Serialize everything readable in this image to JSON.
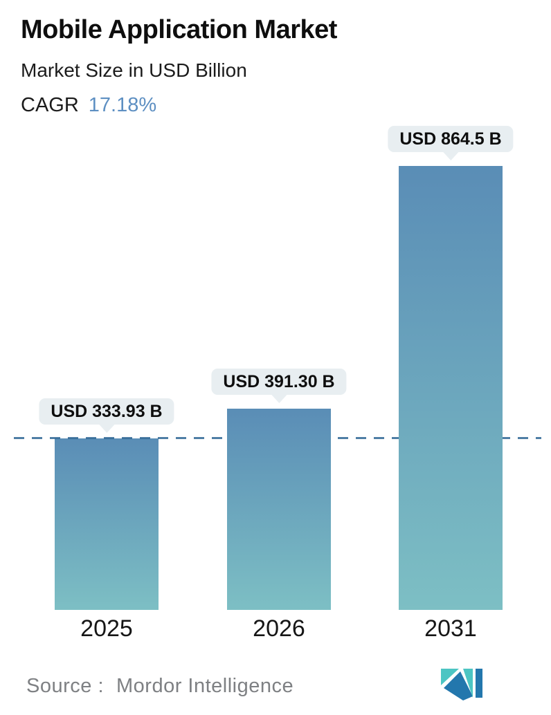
{
  "header": {
    "title": "Mobile Application Market",
    "subtitle": "Market Size in USD Billion",
    "cagr_label": "CAGR",
    "cagr_value": "17.18%",
    "cagr_value_color": "#5d8fc2"
  },
  "chart_data": {
    "type": "bar",
    "title": "Mobile Application Market",
    "unit": "USD Billion",
    "cagr_percent": 17.18,
    "categories": [
      "2025",
      "2026",
      "2031"
    ],
    "values": [
      333.93,
      391.3,
      864.5
    ],
    "bars": [
      {
        "year": "2025",
        "value": 333.93,
        "value_label": "USD 333.93 B"
      },
      {
        "year": "2026",
        "value": 391.3,
        "value_label": "USD 391.30 B"
      },
      {
        "year": "2031",
        "value": 864.5,
        "value_label": "USD 864.5 B"
      }
    ],
    "ylim": [
      0,
      864.5
    ],
    "grid": false,
    "legend": false,
    "reference_line": {
      "style": "dashed",
      "at_value": 333.93,
      "color": "#4e7ea5"
    },
    "bar_gradient_top": "#5a8db6",
    "bar_gradient_bottom": "#7dbfc4",
    "callout_background": "#e8eef1"
  },
  "footer": {
    "source_label": "Source :",
    "source_name": "Mordor Intelligence",
    "logo_name": "mordor-intelligence-logo",
    "logo_teal": "#4cc5c3",
    "logo_blue": "#2377ad"
  }
}
